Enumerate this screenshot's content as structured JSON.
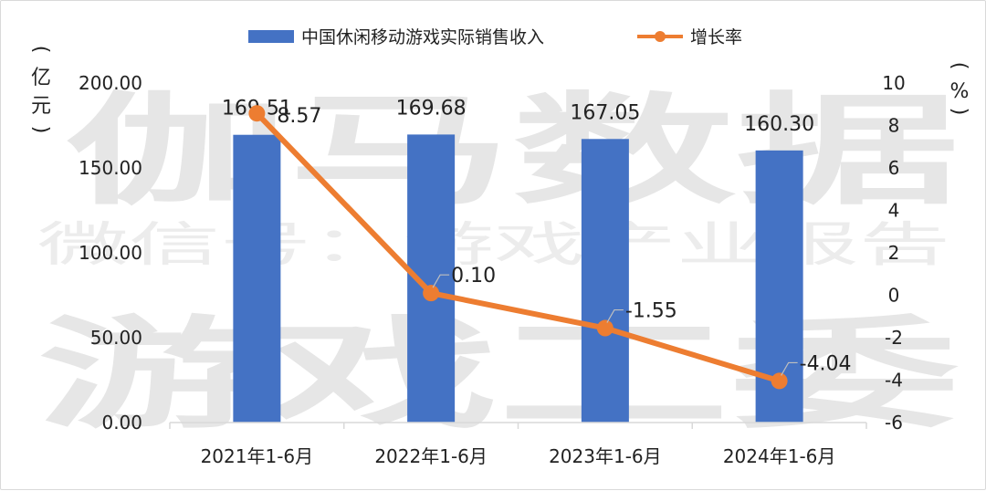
{
  "chart_data": {
    "type": "bar",
    "categories": [
      "2021年1-6月",
      "2022年1-6月",
      "2023年1-6月",
      "2024年1-6月"
    ],
    "series": [
      {
        "name": "中国休闲移动游戏实际销售收入",
        "type": "bar",
        "axis": "left",
        "values": [
          169.51,
          169.68,
          167.05,
          160.3
        ],
        "labels": [
          "169.51",
          "169.68",
          "167.05",
          "160.30"
        ],
        "color": "#4472C4"
      },
      {
        "name": "增长率",
        "type": "line",
        "axis": "right",
        "values": [
          8.57,
          0.1,
          -1.55,
          -4.04
        ],
        "labels": [
          "8.57",
          "0.10",
          "-1.55",
          "-4.04"
        ],
        "color": "#ED7D31"
      }
    ],
    "left_axis": {
      "unit_label": [
        "(",
        "亿",
        "元",
        ")"
      ],
      "ylim": [
        0,
        200
      ],
      "ticks": [
        0,
        50,
        100,
        150,
        200
      ],
      "tick_labels": [
        "0.00",
        "50.00",
        "100.00",
        "150.00",
        "200.00"
      ]
    },
    "right_axis": {
      "unit_label": [
        "(",
        "%",
        ")"
      ],
      "ylim": [
        -6,
        10
      ],
      "ticks": [
        -6,
        -4,
        -2,
        0,
        2,
        4,
        6,
        8,
        10
      ],
      "tick_labels": [
        "-6",
        "-4",
        "-2",
        "0",
        "2",
        "4",
        "6",
        "8",
        "10"
      ]
    },
    "grid": false,
    "legend": "top-center"
  },
  "watermark": {
    "line1": "伽马数据",
    "line2": "微信号：游戏产业报告",
    "line3": "游戏工委"
  }
}
